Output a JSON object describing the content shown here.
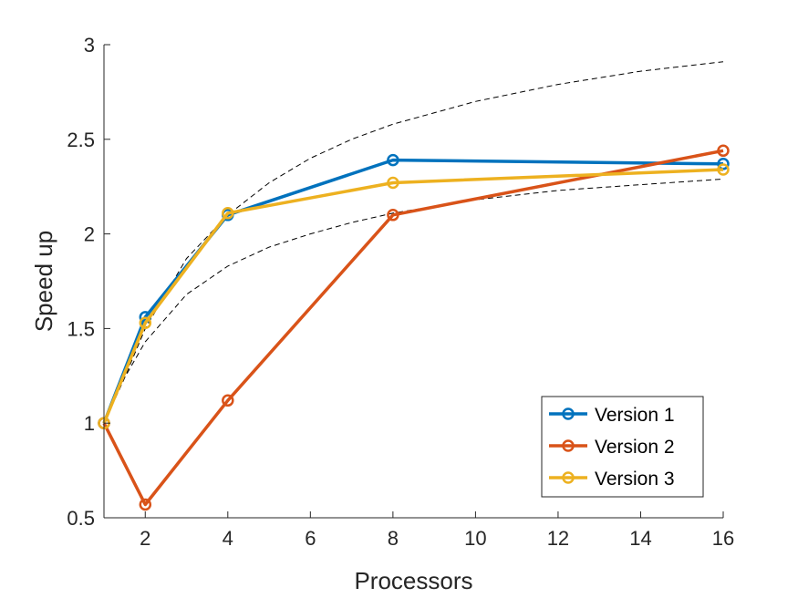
{
  "chart_data": {
    "type": "line",
    "xlabel": "Processors",
    "ylabel": "Speed up",
    "xlim": [
      1,
      16
    ],
    "ylim": [
      0.5,
      3
    ],
    "xticks": [
      2,
      4,
      6,
      8,
      10,
      12,
      14,
      16
    ],
    "yticks": [
      0.5,
      1,
      1.5,
      2,
      2.5,
      3
    ],
    "xtick_labels": [
      "2",
      "4",
      "6",
      "8",
      "10",
      "12",
      "14",
      "16"
    ],
    "ytick_labels": [
      "0.5",
      "1",
      "1.5",
      "2",
      "2.5",
      "3"
    ],
    "grid": false,
    "legend_position": "bottom-right",
    "series": [
      {
        "name": "Version 1",
        "color": "#0072BD",
        "x": [
          1,
          2,
          4,
          8,
          16
        ],
        "y": [
          1.0,
          1.56,
          2.1,
          2.39,
          2.37
        ]
      },
      {
        "name": "Version 2",
        "color": "#D95319",
        "x": [
          1,
          2,
          4,
          8,
          16
        ],
        "y": [
          1.0,
          0.57,
          1.12,
          2.1,
          2.44
        ]
      },
      {
        "name": "Version 3",
        "color": "#EDB120",
        "x": [
          1,
          2,
          4,
          8,
          16
        ],
        "y": [
          1.0,
          1.53,
          2.11,
          2.27,
          2.34
        ]
      }
    ],
    "reference_curves": [
      {
        "style": "dashed",
        "color": "#000000",
        "x": [
          1,
          1.5,
          2,
          3,
          4,
          5,
          6,
          7,
          8,
          10,
          12,
          14,
          16
        ],
        "y": [
          1.0,
          1.24,
          1.5,
          1.87,
          2.1,
          2.27,
          2.4,
          2.5,
          2.58,
          2.7,
          2.79,
          2.86,
          2.91
        ]
      },
      {
        "style": "dashed",
        "color": "#000000",
        "x": [
          1,
          1.5,
          2,
          3,
          4,
          5,
          6,
          7,
          8,
          10,
          12,
          14,
          16
        ],
        "y": [
          1.0,
          1.24,
          1.43,
          1.68,
          1.83,
          1.93,
          2.0,
          2.06,
          2.11,
          2.18,
          2.23,
          2.26,
          2.29
        ]
      }
    ]
  }
}
